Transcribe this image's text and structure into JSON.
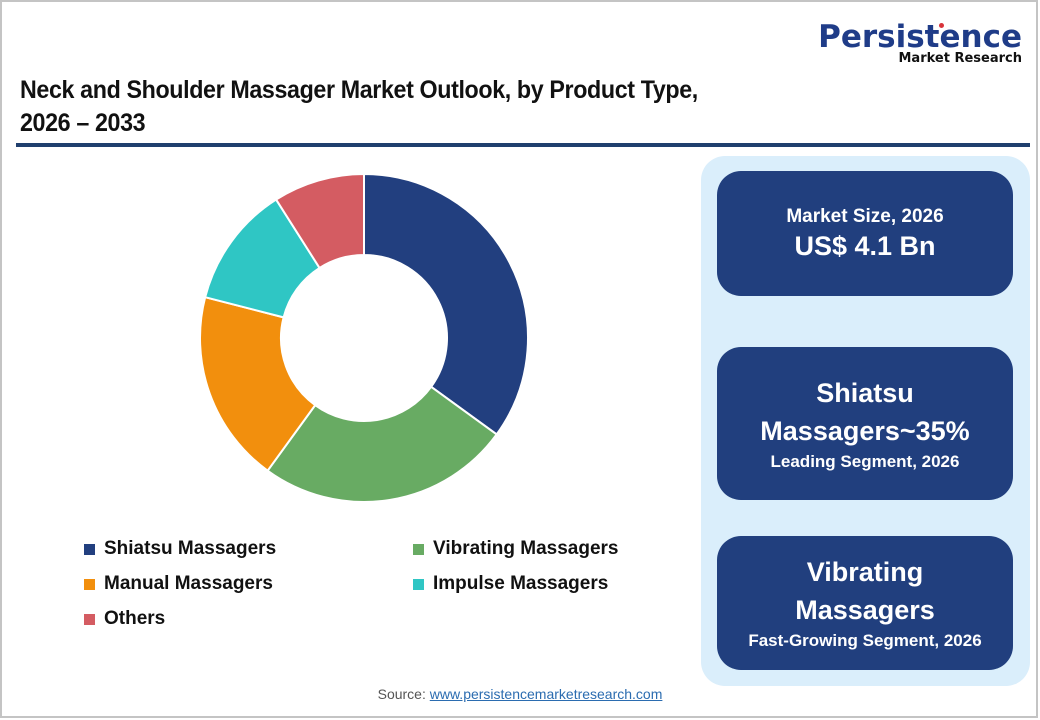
{
  "logo": {
    "name": "Persistence",
    "sub": "Market Research"
  },
  "header": {
    "title_line1": "Neck and Shoulder Massager Market Outlook, by Product Type,",
    "title_line2": "2026 – 2033"
  },
  "colors": {
    "rule": "#203f6e",
    "card": "#213f7e",
    "panel": "#daeefb"
  },
  "chart_data": {
    "type": "pie",
    "subtype": "donut",
    "title": "Neck and Shoulder Massager Market Outlook, by Product Type, 2026 – 2033",
    "categories": [
      "Shiatsu Massagers",
      "Vibrating Massagers",
      "Manual Massagers",
      "Impulse Massagers",
      "Others"
    ],
    "values": [
      35,
      25,
      19,
      12,
      9
    ],
    "unit": "%",
    "colors": [
      "#223f7f",
      "#68ab63",
      "#f28f0d",
      "#2fc6c4",
      "#d45c62"
    ],
    "legend_position": "bottom",
    "start_angle": "12 o'clock, clockwise"
  },
  "legend": {
    "items": [
      {
        "label": "Shiatsu Massagers",
        "color": "#223f7f"
      },
      {
        "label": "Vibrating Massagers",
        "color": "#68ab63"
      },
      {
        "label": "Manual Massagers",
        "color": "#f28f0d"
      },
      {
        "label": "Impulse Massagers",
        "color": "#2fc6c4"
      },
      {
        "label": "Others",
        "color": "#d45c62"
      }
    ]
  },
  "cards": {
    "market_size": {
      "label": "Market Size, 2026",
      "value": "US$ 4.1 Bn"
    },
    "leading": {
      "line1": "Shiatsu",
      "line2": "Massagers~35%",
      "sub": "Leading Segment, 2026"
    },
    "fastest": {
      "line1": "Vibrating",
      "line2": "Massagers",
      "sub": "Fast-Growing Segment, 2026"
    }
  },
  "source": {
    "label": "Source:",
    "link": "www.persistencemarketresearch.com"
  }
}
